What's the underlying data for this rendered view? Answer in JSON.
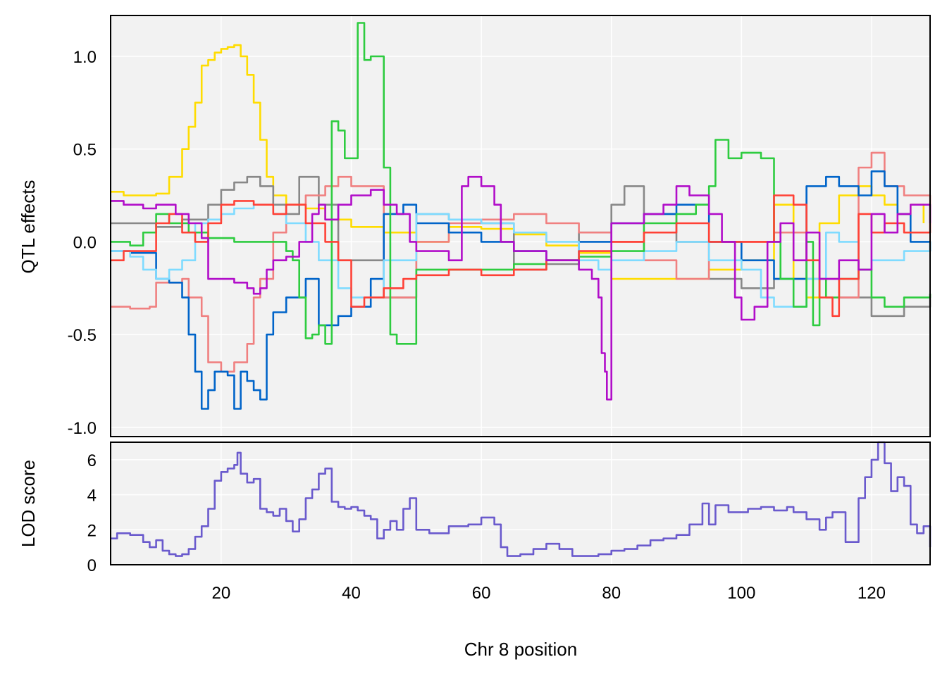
{
  "chart_data": [
    {
      "type": "line",
      "panel": "top",
      "title": "",
      "xlabel": "",
      "ylabel": "QTL effects",
      "xlim": [
        3,
        129
      ],
      "ylim": [
        -1.05,
        1.22
      ],
      "grid": true,
      "y_ticks": [
        -1.0,
        -0.5,
        0.0,
        0.5,
        1.0
      ],
      "y_tick_labels": [
        "-1.0",
        "-0.5",
        "0.0",
        "0.5",
        "1.0"
      ],
      "series": [
        {
          "color": "#FFDC00",
          "x": [
            3,
            5,
            10,
            12,
            14,
            15,
            16,
            17,
            18,
            19,
            20,
            21,
            22,
            23,
            24,
            25,
            26,
            27,
            28,
            30,
            33,
            36,
            40,
            45,
            50,
            55,
            60,
            65,
            70,
            75,
            80,
            85,
            90,
            95,
            100,
            105,
            108,
            110,
            112,
            115,
            118,
            120,
            122,
            124,
            126,
            128
          ],
          "y": [
            0.27,
            0.25,
            0.26,
            0.35,
            0.5,
            0.62,
            0.75,
            0.95,
            0.98,
            1.02,
            1.04,
            1.05,
            1.06,
            1.0,
            0.9,
            0.75,
            0.55,
            0.35,
            0.25,
            0.2,
            0.18,
            0.12,
            0.08,
            0.05,
            0.0,
            0.08,
            0.07,
            0.04,
            -0.02,
            -0.06,
            -0.2,
            -0.2,
            -0.2,
            -0.15,
            -0.1,
            0.2,
            -0.2,
            -0.3,
            0.1,
            0.25,
            0.3,
            0.25,
            0.2,
            0.15,
            0.2,
            0.1
          ]
        },
        {
          "color": "#888888",
          "x": [
            3,
            6,
            10,
            14,
            18,
            20,
            22,
            24,
            26,
            28,
            30,
            32,
            35,
            38,
            40,
            45,
            50,
            55,
            60,
            65,
            70,
            75,
            80,
            82,
            85,
            90,
            95,
            100,
            105,
            110,
            115,
            120,
            125,
            129
          ],
          "y": [
            0.1,
            0.1,
            0.08,
            0.12,
            0.2,
            0.28,
            0.32,
            0.35,
            0.3,
            0.2,
            0.15,
            0.35,
            0.2,
            -0.1,
            -0.1,
            -0.3,
            0.15,
            0.12,
            0.1,
            -0.15,
            -0.12,
            0.05,
            0.2,
            0.3,
            0.15,
            0.0,
            -0.2,
            -0.25,
            -0.2,
            -0.2,
            -0.3,
            -0.4,
            -0.35,
            -0.28
          ]
        },
        {
          "color": "#F08080",
          "x": [
            3,
            6,
            9,
            10,
            14,
            15,
            17,
            18,
            20,
            22,
            24,
            25,
            26,
            28,
            30,
            33,
            36,
            38,
            40,
            45,
            50,
            55,
            60,
            65,
            70,
            75,
            80,
            85,
            90,
            95,
            100,
            105,
            110,
            115,
            118,
            120,
            122,
            125,
            129
          ],
          "y": [
            -0.35,
            -0.36,
            -0.35,
            -0.22,
            -0.2,
            -0.3,
            -0.4,
            -0.65,
            -0.7,
            -0.65,
            -0.55,
            -0.3,
            -0.2,
            0.05,
            0.2,
            0.25,
            0.3,
            0.35,
            0.3,
            -0.3,
            0.0,
            0.1,
            0.12,
            0.15,
            0.1,
            0.05,
            0.0,
            -0.1,
            -0.2,
            0.0,
            0.0,
            0.05,
            -0.2,
            -0.3,
            0.4,
            0.48,
            0.3,
            0.25,
            0.1
          ]
        },
        {
          "color": "#0064C9",
          "x": [
            3,
            6,
            10,
            12,
            14,
            15,
            16,
            17,
            18,
            19,
            20,
            21,
            22,
            23,
            24,
            25,
            26,
            27,
            28,
            30,
            33,
            35,
            38,
            40,
            43,
            45,
            48,
            50,
            55,
            60,
            65,
            70,
            75,
            80,
            85,
            90,
            95,
            100,
            105,
            110,
            113,
            115,
            118,
            120,
            122,
            124,
            126,
            129
          ],
          "y": [
            -0.05,
            -0.06,
            -0.2,
            -0.22,
            -0.3,
            -0.5,
            -0.7,
            -0.9,
            -0.8,
            -0.7,
            -0.7,
            -0.72,
            -0.9,
            -0.7,
            -0.75,
            -0.8,
            -0.85,
            -0.5,
            -0.38,
            -0.3,
            -0.2,
            -0.45,
            -0.4,
            -0.35,
            -0.2,
            0.15,
            0.2,
            0.1,
            0.05,
            0.0,
            -0.05,
            -0.1,
            0.0,
            0.1,
            0.15,
            0.2,
            0.0,
            -0.1,
            -0.2,
            0.3,
            0.35,
            0.3,
            0.25,
            0.38,
            0.3,
            0.15,
            0.0,
            -0.05
          ]
        },
        {
          "color": "#7FDBFF",
          "x": [
            3,
            6,
            8,
            10,
            12,
            14,
            16,
            18,
            20,
            22,
            25,
            28,
            30,
            33,
            35,
            38,
            40,
            45,
            50,
            55,
            60,
            65,
            70,
            75,
            78,
            80,
            85,
            90,
            95,
            100,
            103,
            105,
            108,
            110,
            113,
            115,
            118,
            120,
            122,
            125,
            129
          ],
          "y": [
            -0.05,
            -0.08,
            -0.15,
            -0.2,
            -0.15,
            -0.1,
            0.1,
            0.12,
            0.15,
            0.18,
            0.2,
            0.15,
            0.1,
            0.0,
            -0.1,
            -0.25,
            -0.3,
            -0.1,
            0.15,
            0.12,
            0.1,
            0.05,
            0.0,
            -0.1,
            -0.15,
            -0.1,
            -0.05,
            0.0,
            -0.1,
            -0.15,
            -0.3,
            -0.35,
            -0.35,
            -0.2,
            0.05,
            0.0,
            -0.15,
            -0.1,
            -0.1,
            -0.05,
            0.0
          ]
        },
        {
          "color": "#2ECC40",
          "x": [
            3,
            6,
            8,
            10,
            12,
            15,
            18,
            20,
            22,
            25,
            28,
            30,
            31,
            32,
            33,
            34,
            35,
            36,
            37,
            38,
            39,
            40,
            41,
            42,
            43,
            44,
            45,
            46,
            47,
            48,
            50,
            55,
            60,
            65,
            70,
            75,
            80,
            85,
            90,
            93,
            95,
            96,
            97,
            98,
            100,
            103,
            105,
            106,
            108,
            110,
            111,
            112,
            113,
            115,
            118,
            120,
            122,
            125,
            129
          ],
          "y": [
            0.0,
            -0.02,
            0.05,
            0.15,
            0.1,
            0.05,
            0.02,
            0.02,
            0.0,
            0.0,
            0.0,
            -0.05,
            -0.1,
            -0.3,
            -0.52,
            -0.5,
            -0.45,
            -0.55,
            0.65,
            0.6,
            0.45,
            0.45,
            1.18,
            0.98,
            1.0,
            1.0,
            0.4,
            -0.5,
            -0.55,
            -0.55,
            -0.15,
            -0.15,
            -0.15,
            -0.12,
            -0.1,
            -0.08,
            -0.05,
            0.1,
            0.15,
            0.2,
            0.3,
            0.55,
            0.55,
            0.45,
            0.48,
            0.45,
            0.0,
            -0.2,
            -0.35,
            0.0,
            -0.45,
            -0.2,
            -0.3,
            -0.2,
            -0.15,
            -0.3,
            -0.35,
            -0.3,
            -0.28
          ]
        },
        {
          "color": "#FF4136",
          "x": [
            3,
            5,
            8,
            10,
            12,
            14,
            16,
            18,
            20,
            22,
            25,
            28,
            30,
            33,
            36,
            38,
            40,
            42,
            45,
            48,
            50,
            55,
            60,
            65,
            70,
            75,
            80,
            85,
            90,
            95,
            100,
            105,
            108,
            110,
            112,
            114,
            115,
            118,
            120,
            122,
            125,
            129
          ],
          "y": [
            -0.1,
            -0.05,
            -0.05,
            0.1,
            0.15,
            0.05,
            0.0,
            0.1,
            0.2,
            0.22,
            0.2,
            0.15,
            0.2,
            0.1,
            0.0,
            -0.1,
            -0.35,
            -0.3,
            -0.25,
            -0.2,
            -0.18,
            -0.15,
            -0.18,
            -0.15,
            -0.1,
            -0.05,
            0.0,
            0.05,
            0.1,
            0.0,
            0.0,
            0.25,
            0.2,
            -0.1,
            -0.3,
            -0.4,
            -0.2,
            0.15,
            0.05,
            0.1,
            0.05,
            0.1
          ]
        },
        {
          "color": "#B10DC9",
          "x": [
            3,
            5,
            8,
            10,
            13,
            15,
            17,
            18,
            20,
            22,
            24,
            25,
            26,
            27,
            28,
            30,
            32,
            34,
            35,
            36,
            38,
            40,
            43,
            45,
            47,
            49,
            50,
            55,
            57,
            58,
            60,
            62,
            63,
            65,
            70,
            75,
            77,
            78,
            78.5,
            79,
            79.3,
            80,
            85,
            88,
            90,
            92,
            95,
            97,
            99,
            100,
            102,
            104,
            106,
            108,
            110,
            112,
            115,
            118,
            120,
            122,
            124,
            126,
            129
          ],
          "y": [
            0.22,
            0.2,
            0.18,
            0.2,
            0.15,
            0.1,
            0.02,
            -0.2,
            -0.2,
            -0.22,
            -0.25,
            -0.28,
            -0.25,
            -0.15,
            -0.1,
            -0.08,
            0.0,
            0.15,
            0.2,
            0.12,
            0.2,
            0.25,
            0.28,
            0.2,
            0.15,
            0.0,
            -0.05,
            -0.1,
            0.3,
            0.35,
            0.3,
            0.2,
            0.0,
            -0.05,
            -0.1,
            -0.15,
            -0.2,
            -0.3,
            -0.6,
            -0.7,
            -0.85,
            0.1,
            0.15,
            0.2,
            0.3,
            0.25,
            0.15,
            0.0,
            -0.3,
            -0.42,
            -0.35,
            0.0,
            0.1,
            -0.1,
            0.05,
            -0.2,
            -0.1,
            -0.15,
            0.15,
            0.05,
            0.15,
            0.2,
            0.1
          ]
        }
      ]
    },
    {
      "type": "line",
      "panel": "bottom",
      "title": "",
      "xlabel": "Chr 8 position",
      "ylabel": "LOD score",
      "xlim": [
        3,
        129
      ],
      "ylim": [
        0,
        7
      ],
      "grid": true,
      "x_ticks": [
        20,
        40,
        60,
        80,
        100,
        120
      ],
      "x_tick_labels": [
        "20",
        "40",
        "60",
        "80",
        "100",
        "120"
      ],
      "y_ticks": [
        0,
        2,
        4,
        6
      ],
      "y_tick_labels": [
        "0",
        "2",
        "4",
        "6"
      ],
      "series": [
        {
          "color": "#6A5ACD",
          "x": [
            3,
            4,
            6,
            8,
            9,
            10,
            11,
            12,
            13,
            14,
            15,
            16,
            17,
            18,
            19,
            20,
            21,
            22,
            22.5,
            23,
            24,
            25,
            26,
            27,
            28,
            29,
            30,
            31,
            32,
            33,
            34,
            35,
            36,
            37,
            38,
            39,
            40,
            41,
            42,
            43,
            44,
            45,
            46,
            47,
            48,
            49,
            50,
            52,
            55,
            58,
            60,
            62,
            63,
            64,
            66,
            68,
            70,
            72,
            74,
            76,
            78,
            80,
            82,
            84,
            86,
            88,
            90,
            92,
            94,
            95,
            96,
            98,
            100,
            101,
            103,
            105,
            107,
            108,
            110,
            112,
            113,
            114,
            116,
            118,
            119,
            120,
            121,
            122,
            123,
            124,
            125,
            126,
            127,
            128,
            129
          ],
          "y": [
            1.5,
            1.8,
            1.7,
            1.3,
            1.0,
            1.4,
            0.8,
            0.6,
            0.5,
            0.6,
            0.9,
            1.6,
            2.2,
            3.2,
            4.8,
            5.3,
            5.5,
            5.7,
            6.4,
            5.2,
            4.7,
            4.9,
            3.2,
            3.0,
            2.8,
            3.2,
            2.5,
            1.9,
            2.6,
            3.8,
            4.3,
            5.2,
            5.5,
            3.6,
            3.3,
            3.2,
            3.3,
            3.1,
            2.8,
            2.6,
            1.5,
            2.0,
            2.5,
            2.0,
            3.2,
            3.8,
            2.0,
            1.8,
            2.2,
            2.3,
            2.7,
            2.3,
            1.0,
            0.5,
            0.6,
            0.9,
            1.2,
            0.9,
            0.5,
            0.5,
            0.6,
            0.8,
            0.9,
            1.1,
            1.4,
            1.5,
            1.7,
            2.3,
            3.5,
            2.3,
            3.4,
            3.0,
            3.0,
            3.2,
            3.3,
            3.1,
            3.3,
            3.0,
            2.6,
            2.0,
            2.7,
            3.0,
            1.3,
            3.8,
            5.0,
            6.0,
            7.0,
            5.8,
            4.2,
            5.0,
            4.5,
            2.3,
            1.8,
            2.2,
            1.0
          ]
        }
      ]
    }
  ]
}
